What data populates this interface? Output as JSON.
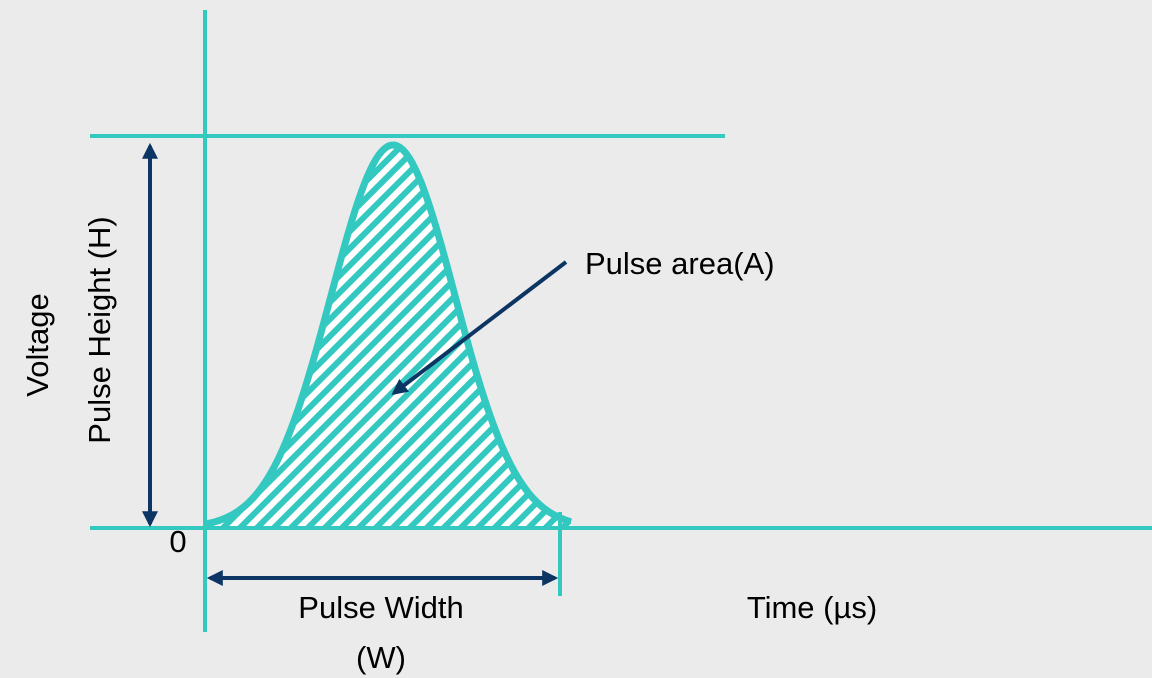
{
  "y_axis_label": "Voltage",
  "height_label": "Pulse Height (H)",
  "origin_label": "0",
  "width_label": [
    "Pulse Width",
    "(W)"
  ],
  "x_axis_label": "Time (µs)",
  "area_label": "Pulse area(A)"
}
